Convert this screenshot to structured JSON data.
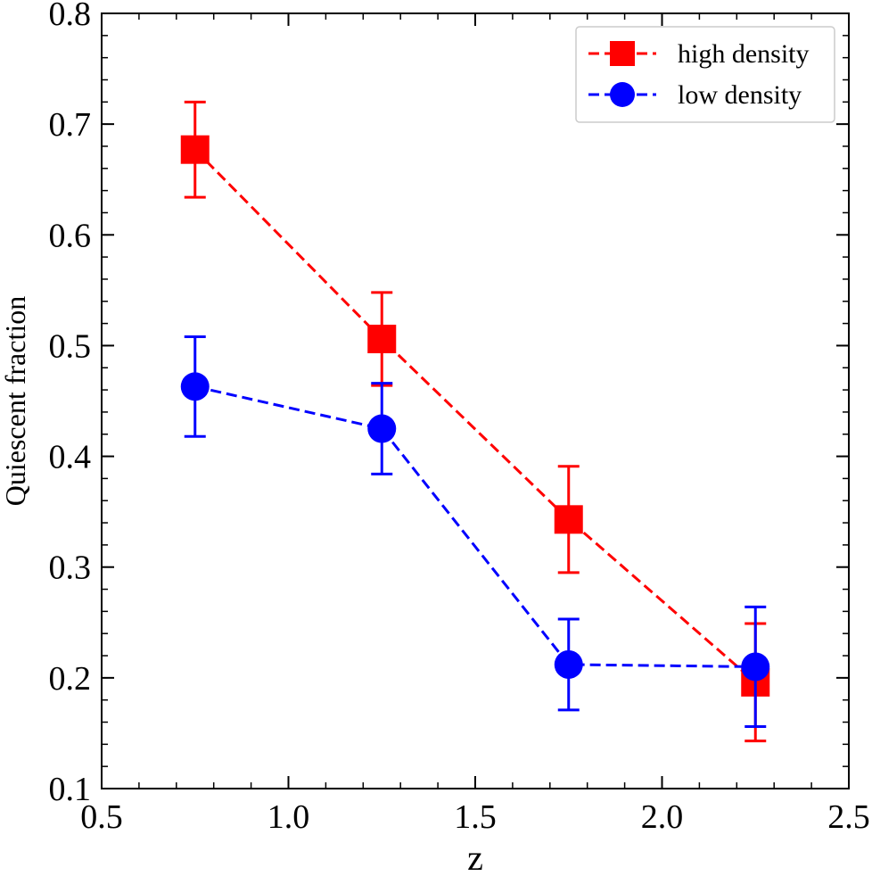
{
  "chart_data": {
    "type": "line",
    "title": "",
    "xlabel": "z",
    "ylabel": "Quiescent fraction",
    "xlim": [
      0.5,
      2.5
    ],
    "ylim": [
      0.1,
      0.8
    ],
    "xticks": [
      0.5,
      1.0,
      1.5,
      2.0,
      2.5
    ],
    "xtick_labels": [
      "0.5",
      "1.0",
      "1.5",
      "2.0",
      "2.5"
    ],
    "yticks": [
      0.1,
      0.2,
      0.3,
      0.4,
      0.5,
      0.6,
      0.7,
      0.8
    ],
    "ytick_labels": [
      "0.1",
      "0.2",
      "0.3",
      "0.4",
      "0.5",
      "0.6",
      "0.7",
      "0.8"
    ],
    "grid": false,
    "legend_position": "top-right",
    "series": [
      {
        "name": "high density",
        "color": "#ff0000",
        "marker": "square",
        "x": [
          0.75,
          1.25,
          1.75,
          2.25
        ],
        "y": [
          0.677,
          0.506,
          0.343,
          0.196
        ],
        "yerr": [
          0.043,
          0.042,
          0.048,
          0.053
        ]
      },
      {
        "name": "low density",
        "color": "#0000ff",
        "marker": "circle",
        "x": [
          0.75,
          1.25,
          1.75,
          2.25
        ],
        "y": [
          0.463,
          0.425,
          0.212,
          0.21
        ],
        "yerr": [
          0.045,
          0.041,
          0.041,
          0.054
        ]
      }
    ]
  }
}
